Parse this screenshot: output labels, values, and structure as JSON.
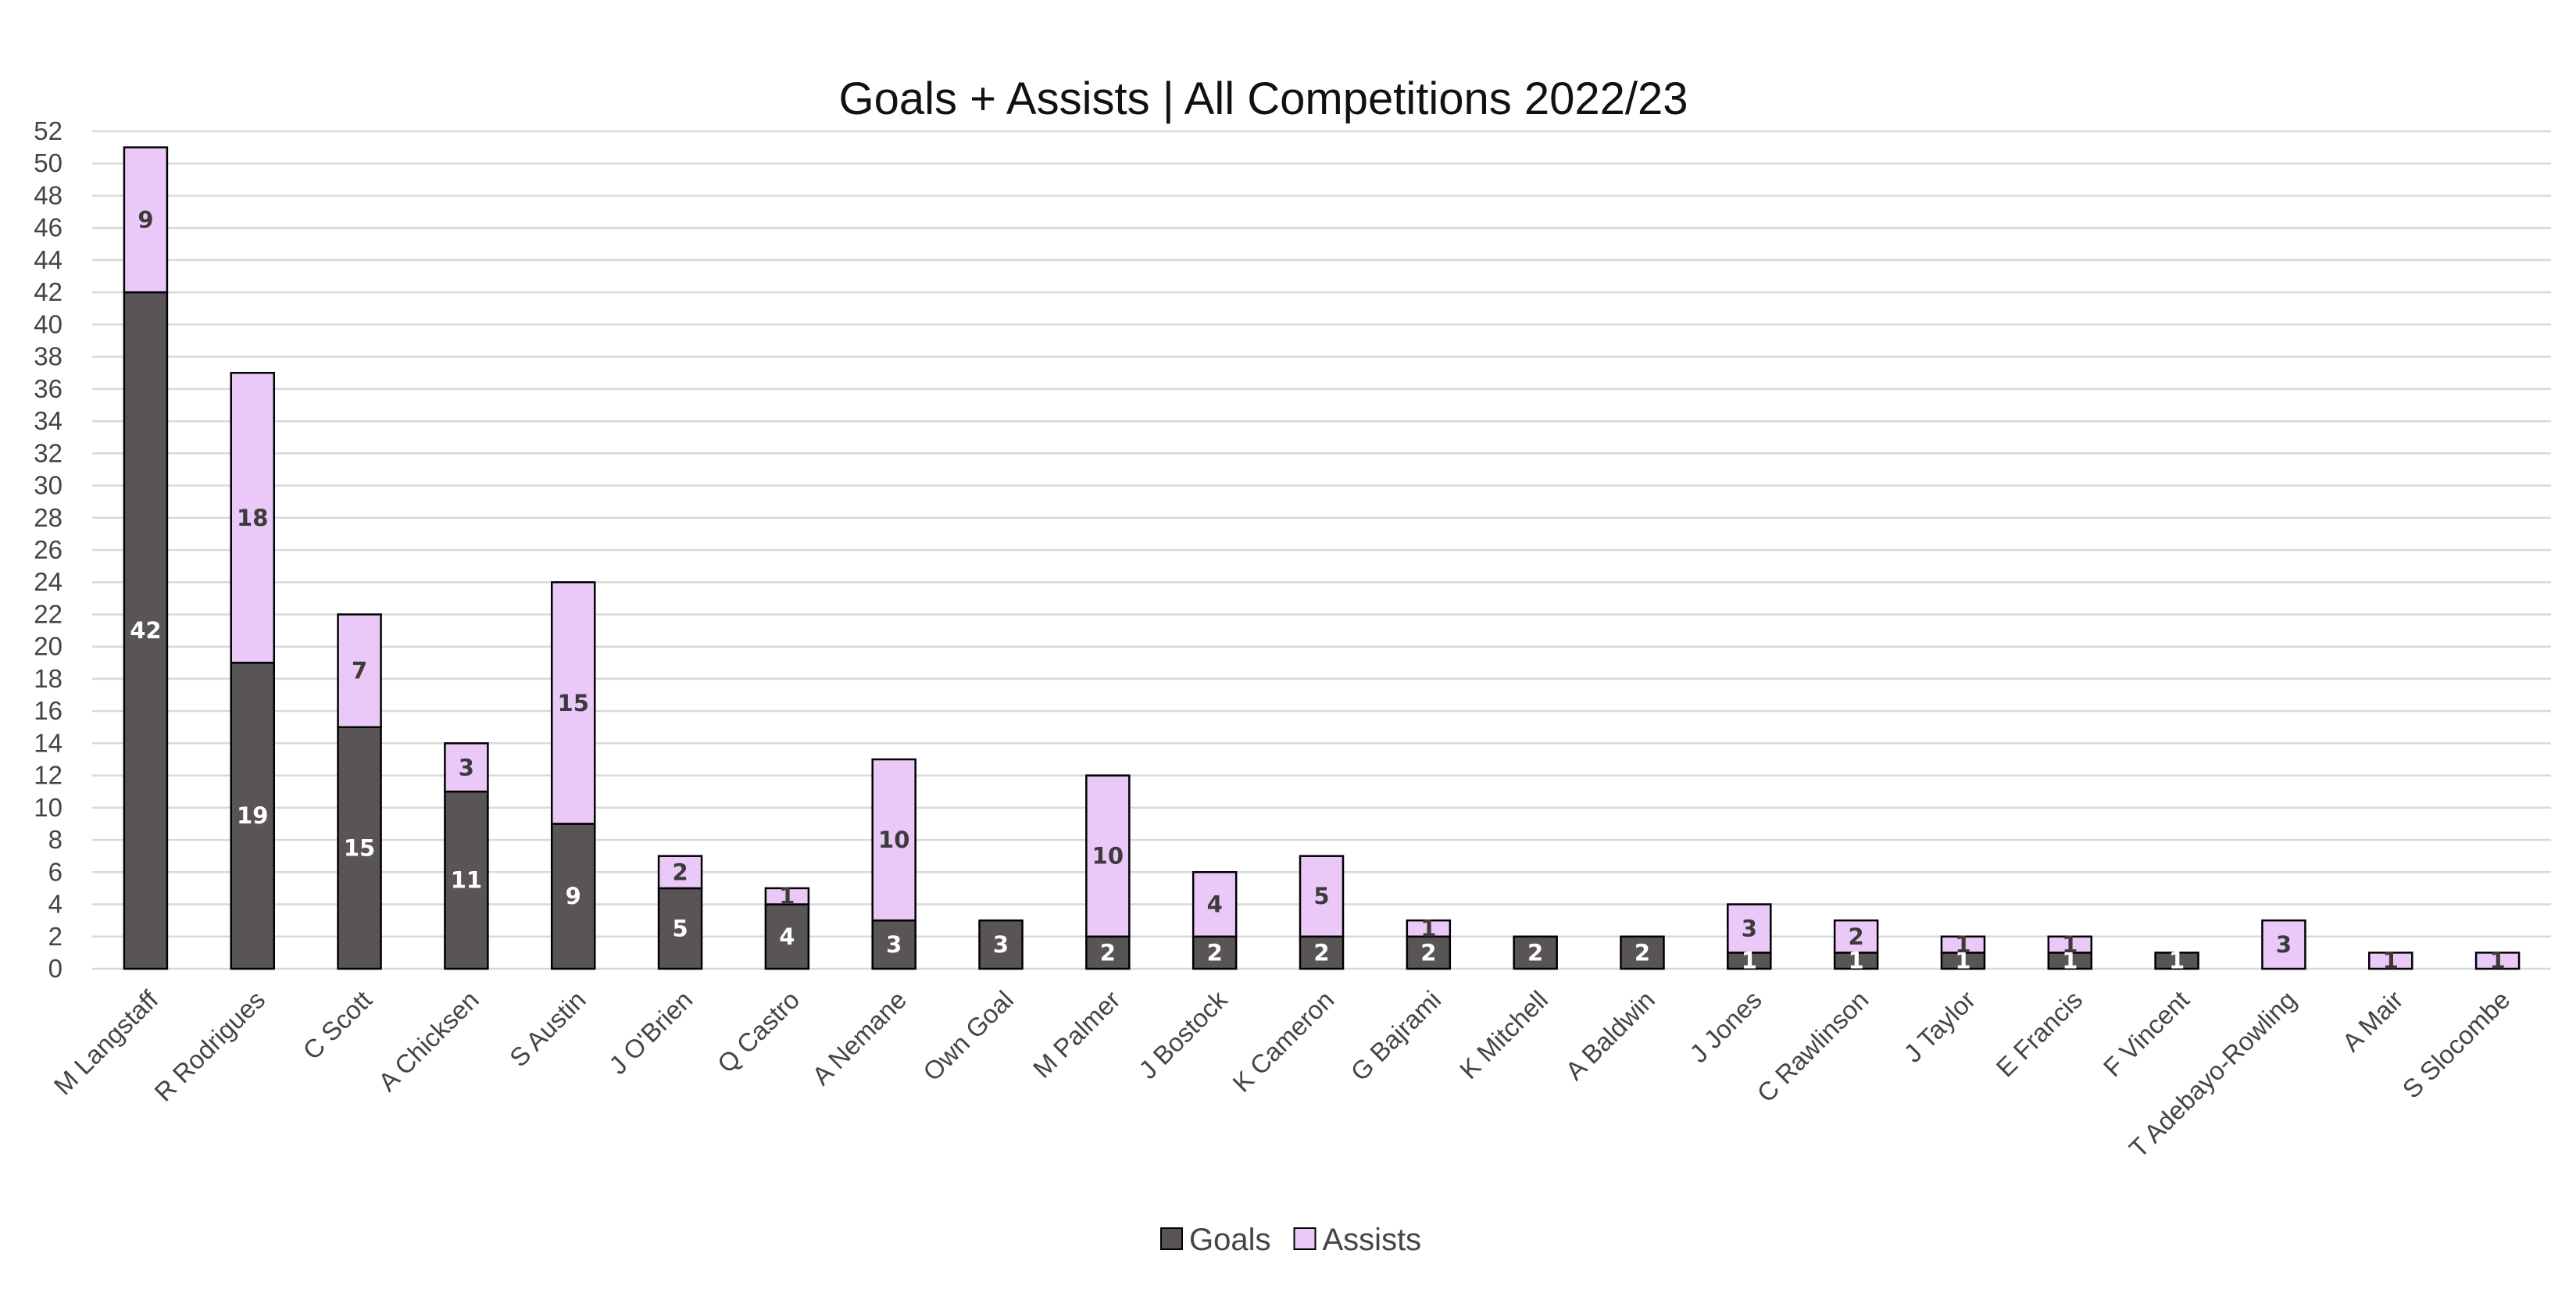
{
  "chart_data": {
    "type": "bar",
    "stacked": true,
    "title": "Goals + Assists | All Competitions 2022/23",
    "xlabel": "",
    "ylabel": "",
    "ylim": [
      0,
      52
    ],
    "y_ticks": [
      0,
      2,
      4,
      6,
      8,
      10,
      12,
      14,
      16,
      18,
      20,
      22,
      24,
      26,
      28,
      30,
      32,
      34,
      36,
      38,
      40,
      42,
      44,
      46,
      48,
      50,
      52
    ],
    "grid": true,
    "legend_position": "bottom",
    "categories": [
      "M Langstaff",
      "R Rodrigues",
      "C Scott",
      "A Chicksen",
      "S Austin",
      "J O'Brien",
      "Q Castro",
      "A Nemane",
      "Own Goal",
      "M Palmer",
      "J Bostock",
      "K Cameron",
      "G Bajrami",
      "K Mitchell",
      "A Baldwin",
      "J Jones",
      "C Rawlinson",
      "J Taylor",
      "E Francis",
      "F Vincent",
      "T Adebayo-Rowling",
      "A Mair",
      "S Slocombe"
    ],
    "series": [
      {
        "name": "Goals",
        "color": "#595556",
        "label_color": "#ffffff",
        "values": [
          42,
          19,
          15,
          11,
          9,
          5,
          4,
          3,
          3,
          2,
          2,
          2,
          2,
          2,
          2,
          1,
          1,
          1,
          1,
          1,
          0,
          0,
          0
        ]
      },
      {
        "name": "Assists",
        "color": "#eac8f8",
        "label_color": "#3d3a3b",
        "values": [
          9,
          18,
          7,
          3,
          15,
          2,
          1,
          10,
          0,
          10,
          4,
          5,
          1,
          0,
          0,
          3,
          2,
          1,
          1,
          0,
          3,
          1,
          1
        ]
      }
    ]
  }
}
